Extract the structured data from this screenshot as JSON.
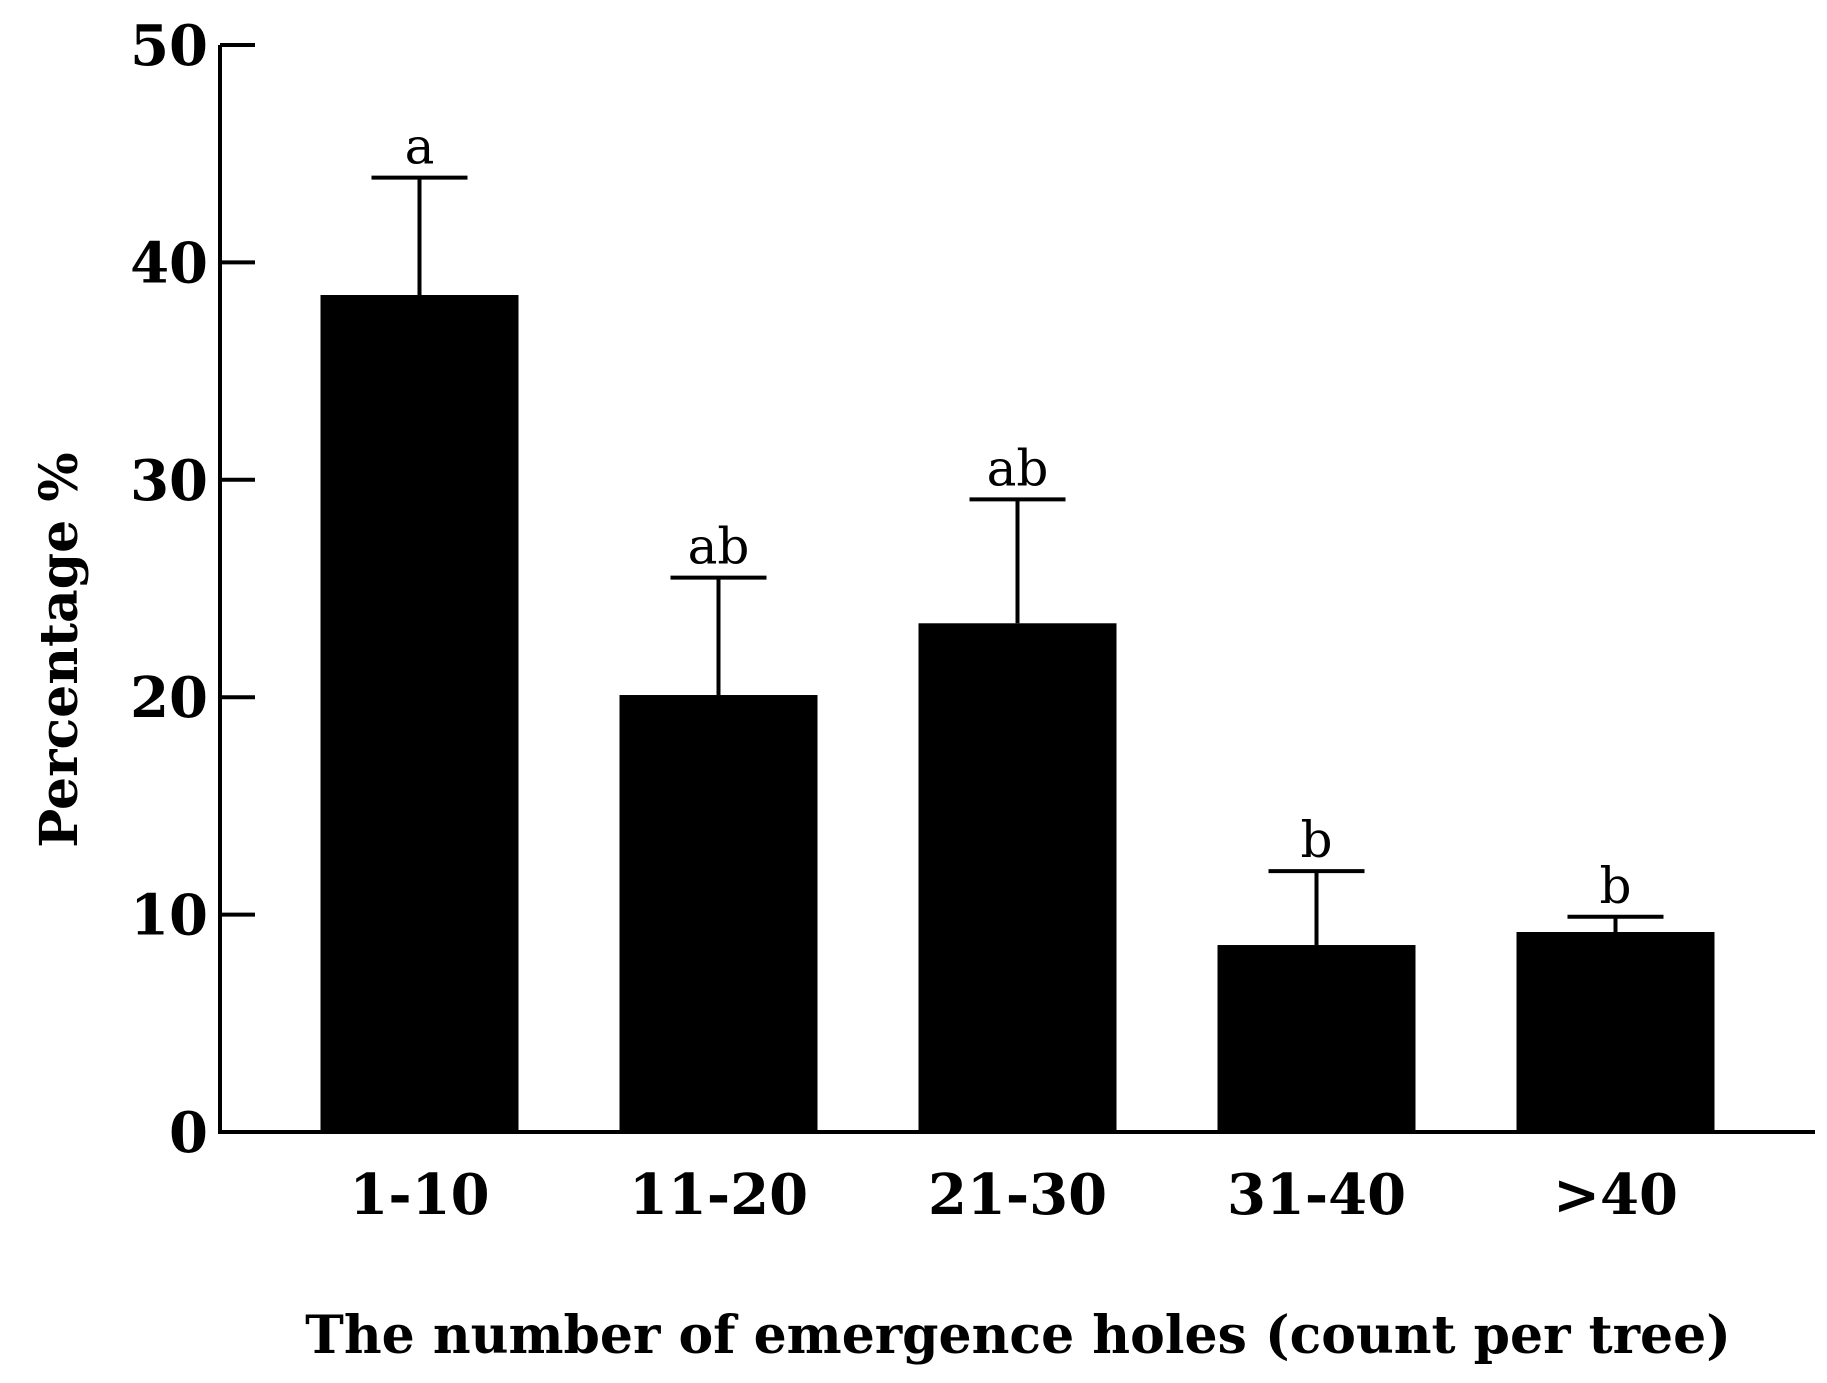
{
  "chart_data": {
    "type": "bar",
    "categories": [
      "1-10",
      "11-20",
      "21-30",
      "31-40",
      ">40"
    ],
    "values": [
      38.5,
      20.1,
      23.4,
      8.6,
      9.2
    ],
    "error_upper": [
      43.9,
      25.5,
      29.1,
      12.0,
      9.9
    ],
    "significance_labels": [
      "a",
      "ab",
      "ab",
      "b",
      "b"
    ],
    "title": "",
    "xlabel": "The number of emergence holes (count per tree)",
    "ylabel": "Percentage %",
    "ylim": [
      0,
      50
    ],
    "yticks": [
      0,
      10,
      20,
      30,
      40,
      50
    ],
    "grid": false,
    "bar_color": "#000000"
  }
}
